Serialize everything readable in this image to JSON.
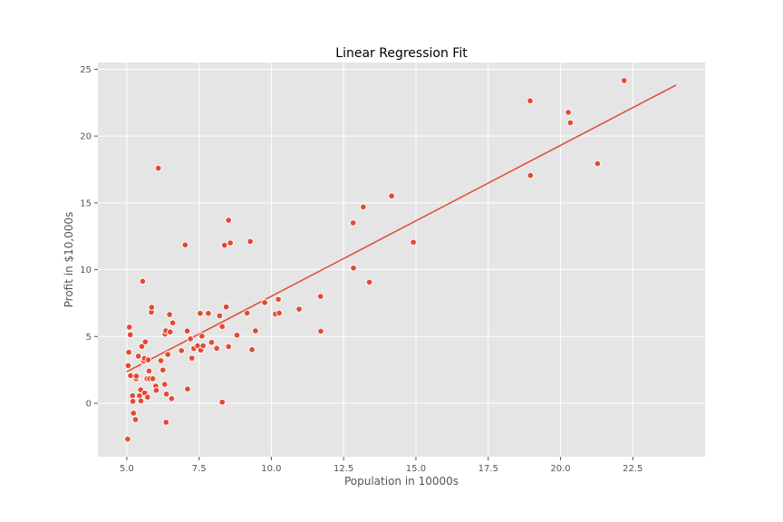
{
  "chart_data": {
    "type": "scatter",
    "title": "Linear Regression Fit",
    "xlabel": "Population in 10000s",
    "ylabel": "Profit in $10,000s",
    "xlim": [
      4.0,
      25.0
    ],
    "ylim": [
      -4.0,
      25.5
    ],
    "xticks": [
      5.0,
      7.5,
      10.0,
      12.5,
      15.0,
      17.5,
      20.0,
      22.5
    ],
    "xtick_labels": [
      "5.0",
      "7.5",
      "10.0",
      "12.5",
      "15.0",
      "17.5",
      "20.0",
      "22.5"
    ],
    "yticks": [
      0,
      5,
      10,
      15,
      20,
      25
    ],
    "ytick_labels": [
      "0",
      "5",
      "10",
      "15",
      "20",
      "25"
    ],
    "grid": true,
    "style": "ggplot",
    "colors": {
      "background": "#e5e5e5",
      "grid": "#ffffff",
      "marker": "#e24a33",
      "line": "#e24a33"
    },
    "series": [
      {
        "type": "scatter",
        "points": [
          [
            5.03,
            -2.68
          ],
          [
            5.05,
            2.82
          ],
          [
            5.07,
            3.82
          ],
          [
            5.09,
            5.7
          ],
          [
            5.12,
            5.13
          ],
          [
            5.13,
            2.07
          ],
          [
            5.2,
            0.56
          ],
          [
            5.21,
            0.15
          ],
          [
            5.23,
            -0.74
          ],
          [
            5.3,
            -1.22
          ],
          [
            5.32,
            1.84
          ],
          [
            5.33,
            2.04
          ],
          [
            5.4,
            3.53
          ],
          [
            5.44,
            0.56
          ],
          [
            5.48,
            1.01
          ],
          [
            5.49,
            0.18
          ],
          [
            5.52,
            4.26
          ],
          [
            5.55,
            9.13
          ],
          [
            5.58,
            3.16
          ],
          [
            5.61,
            3.36
          ],
          [
            5.62,
            0.77
          ],
          [
            5.64,
            4.6
          ],
          [
            5.7,
            1.84
          ],
          [
            5.72,
            0.46
          ],
          [
            5.74,
            3.25
          ],
          [
            5.77,
            2.42
          ],
          [
            5.79,
            1.84
          ],
          [
            5.85,
            6.82
          ],
          [
            5.86,
            7.18
          ],
          [
            5.9,
            1.84
          ],
          [
            6.0,
            1.28
          ],
          [
            6.02,
            0.97
          ],
          [
            6.09,
            17.59
          ],
          [
            6.18,
            3.19
          ],
          [
            6.25,
            2.49
          ],
          [
            6.31,
            1.42
          ],
          [
            6.32,
            5.18
          ],
          [
            6.35,
            5.43
          ],
          [
            6.36,
            -1.42
          ],
          [
            6.37,
            0.69
          ],
          [
            6.42,
            3.66
          ],
          [
            6.48,
            6.64
          ],
          [
            6.5,
            5.34
          ],
          [
            6.55,
            0.35
          ],
          [
            6.59,
            6.02
          ],
          [
            6.89,
            3.94
          ],
          [
            7.02,
            11.85
          ],
          [
            7.09,
            5.41
          ],
          [
            7.1,
            1.07
          ],
          [
            7.2,
            4.82
          ],
          [
            7.25,
            3.38
          ],
          [
            7.32,
            4.1
          ],
          [
            7.45,
            4.3
          ],
          [
            7.54,
            6.73
          ],
          [
            7.56,
            3.98
          ],
          [
            7.6,
            5.03
          ],
          [
            7.64,
            4.31
          ],
          [
            7.82,
            6.73
          ],
          [
            7.93,
            4.56
          ],
          [
            8.11,
            4.11
          ],
          [
            8.21,
            6.55
          ],
          [
            8.3,
            0.09
          ],
          [
            8.3,
            5.74
          ],
          [
            8.38,
            11.83
          ],
          [
            8.44,
            7.21
          ],
          [
            8.52,
            13.7
          ],
          [
            8.52,
            4.24
          ],
          [
            8.58,
            12.0
          ],
          [
            8.81,
            5.1
          ],
          [
            9.16,
            6.75
          ],
          [
            9.27,
            12.11
          ],
          [
            9.33,
            4.01
          ],
          [
            9.45,
            5.42
          ],
          [
            9.77,
            7.54
          ],
          [
            10.14,
            6.68
          ],
          [
            10.24,
            7.78
          ],
          [
            10.27,
            6.75
          ],
          [
            10.96,
            7.05
          ],
          [
            11.7,
            8.0
          ],
          [
            11.71,
            5.39
          ],
          [
            12.83,
            13.5
          ],
          [
            12.84,
            10.12
          ],
          [
            13.18,
            14.69
          ],
          [
            13.39,
            9.06
          ],
          [
            14.16,
            15.51
          ],
          [
            14.91,
            12.05
          ],
          [
            18.95,
            22.64
          ],
          [
            18.96,
            17.05
          ],
          [
            20.27,
            21.77
          ],
          [
            20.34,
            20.99
          ],
          [
            21.28,
            17.93
          ],
          [
            22.2,
            24.15
          ]
        ]
      },
      {
        "type": "line",
        "x": [
          5.0,
          24.0
        ],
        "y": [
          2.36,
          23.82
        ]
      }
    ]
  }
}
